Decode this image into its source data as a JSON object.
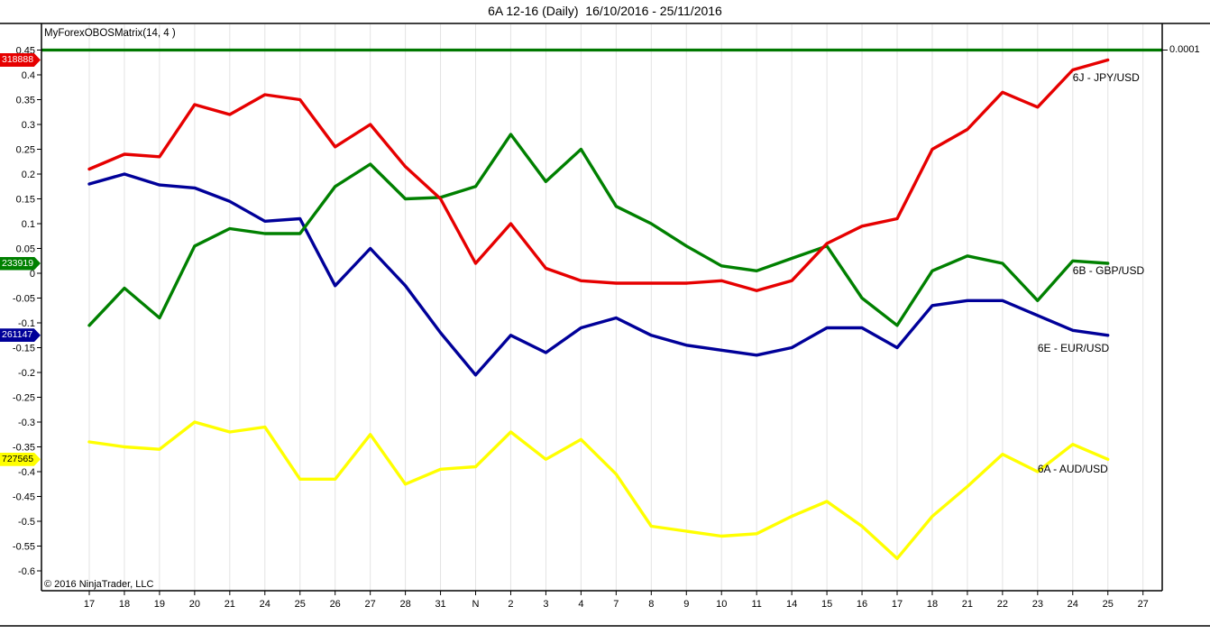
{
  "window": {
    "title": "6A 12-16 (Daily)  16/10/2016 - 25/11/2016"
  },
  "chart": {
    "indicator_label": "MyForexOBOSMatrix(14, 4 )",
    "copyright": "© 2016 NinjaTrader, LLC",
    "right_axis_top_label": "0.0001",
    "grid_color": "#e3e3e3",
    "border_color": "#000000"
  },
  "chart_data": {
    "type": "line",
    "title": "6A 12-16 (Daily)  16/10/2016 - 25/11/2016",
    "indicator": "MyForexOBOSMatrix(14, 4 )",
    "x_tick_labels": [
      "17",
      "18",
      "19",
      "20",
      "21",
      "24",
      "25",
      "26",
      "27",
      "28",
      "31",
      "N",
      "2",
      "3",
      "4",
      "7",
      "8",
      "9",
      "10",
      "11",
      "14",
      "15",
      "16",
      "17",
      "18",
      "21",
      "22",
      "23",
      "24",
      "25",
      "27"
    ],
    "y_tick_labels": [
      "0.45",
      "0.4",
      "0.35",
      "0.3",
      "0.25",
      "0.2",
      "0.15",
      "0.1",
      "0.05",
      "0",
      "-0.05",
      "-0.1",
      "-0.15",
      "-0.2",
      "-0.25",
      "-0.3",
      "-0.35",
      "-0.4",
      "-0.45",
      "-0.5",
      "-0.55",
      "-0.6"
    ],
    "ylim": [
      -0.64,
      0.5
    ],
    "grid": "vertical-only",
    "legend_position": "inline-right",
    "horizontal_line": {
      "value": 0.45,
      "color": "#007800",
      "right_axis_label": "0.0001"
    },
    "series": [
      {
        "name": "6E - EUR/USD",
        "color": "#000099",
        "tag": "261147",
        "tag_text_color": "#ffffff",
        "label_anchor": {
          "tick": 27,
          "value": -0.151
        },
        "values": [
          0.18,
          0.2,
          0.178,
          0.172,
          0.145,
          0.105,
          0.11,
          -0.025,
          0.05,
          -0.025,
          -0.12,
          -0.205,
          -0.125,
          -0.16,
          -0.11,
          -0.09,
          -0.125,
          -0.145,
          -0.155,
          -0.165,
          -0.15,
          -0.11,
          -0.11,
          -0.15,
          -0.065,
          -0.055,
          -0.055,
          -0.085,
          -0.115,
          -0.125
        ]
      },
      {
        "name": "6B - GBP/USD",
        "color": "#008000",
        "tag": "233919",
        "tag_text_color": "#ffffff",
        "label_anchor": {
          "tick": 28,
          "value": 0.005
        },
        "values": [
          -0.105,
          -0.03,
          -0.09,
          0.055,
          0.09,
          0.08,
          0.08,
          0.175,
          0.22,
          0.15,
          0.153,
          0.175,
          0.28,
          0.185,
          0.25,
          0.135,
          0.1,
          0.055,
          0.015,
          0.005,
          0.03,
          0.055,
          -0.05,
          -0.105,
          0.005,
          0.035,
          0.02,
          -0.055,
          0.025,
          0.02
        ]
      },
      {
        "name": "6J - JPY/USD",
        "color": "#e60000",
        "tag": "318888",
        "tag_text_color": "#ffffff",
        "label_anchor": {
          "tick": 28,
          "value": 0.394
        },
        "values": [
          0.21,
          0.24,
          0.235,
          0.34,
          0.32,
          0.36,
          0.35,
          0.255,
          0.3,
          0.215,
          0.15,
          0.02,
          0.1,
          0.01,
          -0.015,
          -0.02,
          -0.02,
          -0.02,
          -0.015,
          -0.035,
          -0.015,
          0.06,
          0.095,
          0.11,
          0.25,
          0.29,
          0.365,
          0.335,
          0.41,
          0.43
        ]
      },
      {
        "name": "6A - AUD/USD",
        "color": "#ffff00",
        "tag": "727565",
        "tag_text_color": "#000000",
        "label_anchor": {
          "tick": 27,
          "value": -0.394
        },
        "values": [
          -0.34,
          -0.35,
          -0.355,
          -0.3,
          -0.32,
          -0.31,
          -0.415,
          -0.415,
          -0.325,
          -0.425,
          -0.395,
          -0.39,
          -0.32,
          -0.375,
          -0.335,
          -0.405,
          -0.51,
          -0.52,
          -0.53,
          -0.525,
          -0.49,
          -0.46,
          -0.51,
          -0.575,
          -0.49,
          -0.43,
          -0.365,
          -0.4,
          -0.345,
          -0.375
        ]
      }
    ]
  }
}
